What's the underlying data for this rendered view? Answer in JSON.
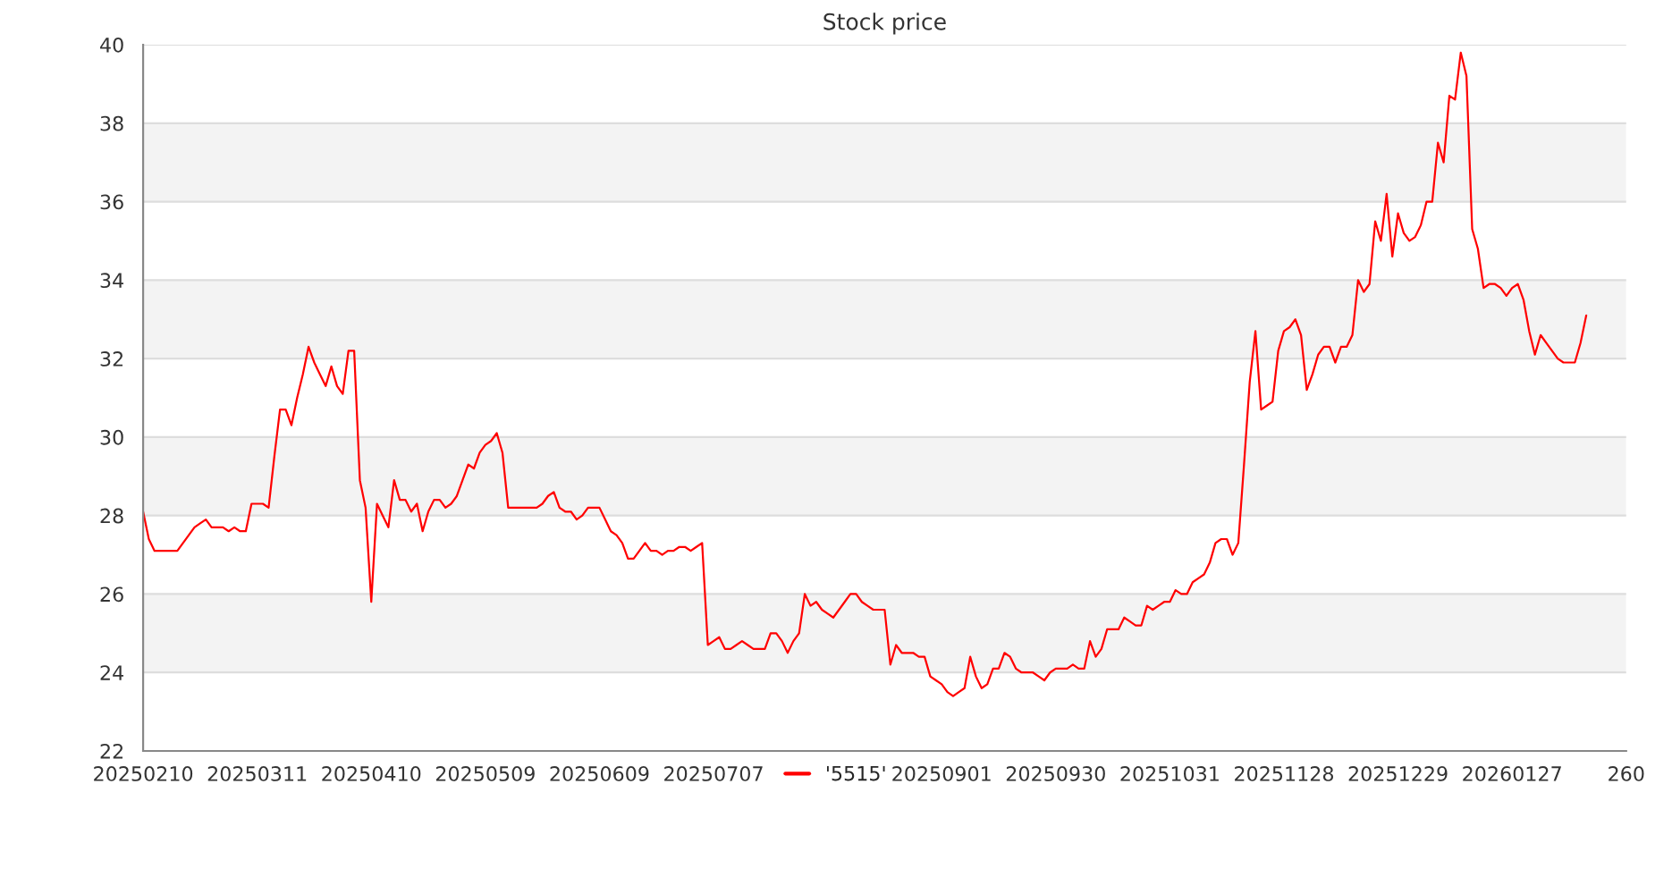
{
  "chart_data": {
    "type": "line",
    "title": "Stock price",
    "categories": [
      "20250210",
      null,
      null,
      null,
      null,
      null,
      null,
      null,
      null,
      null,
      null,
      null,
      null,
      null,
      null,
      null,
      null,
      null,
      null,
      null,
      "20250311",
      null,
      null,
      null,
      null,
      null,
      null,
      null,
      null,
      null,
      null,
      null,
      null,
      null,
      null,
      null,
      null,
      null,
      null,
      null,
      "20250410",
      null,
      null,
      null,
      null,
      null,
      null,
      null,
      null,
      null,
      null,
      null,
      null,
      null,
      null,
      null,
      null,
      null,
      null,
      null,
      "20250509",
      null,
      null,
      null,
      null,
      null,
      null,
      null,
      null,
      null,
      null,
      null,
      null,
      null,
      null,
      null,
      null,
      null,
      null,
      null,
      "20250609",
      null,
      null,
      null,
      null,
      null,
      null,
      null,
      null,
      null,
      null,
      null,
      null,
      null,
      null,
      null,
      null,
      null,
      null,
      null,
      "20250707",
      null,
      null,
      null,
      null,
      null,
      null,
      null,
      null,
      null,
      null,
      null,
      null,
      null,
      null,
      null,
      null,
      null,
      null,
      null,
      null,
      null,
      null,
      null,
      null,
      null,
      null,
      null,
      null,
      null,
      null,
      null,
      null,
      null,
      null,
      null,
      null,
      null,
      null,
      null,
      "20250901",
      null,
      null,
      null,
      null,
      null,
      null,
      null,
      null,
      null,
      null,
      null,
      null,
      null,
      null,
      null,
      null,
      null,
      null,
      null,
      "20250930",
      null,
      null,
      null,
      null,
      null,
      null,
      null,
      null,
      null,
      null,
      null,
      null,
      null,
      null,
      null,
      null,
      null,
      null,
      null,
      "20251031",
      null,
      null,
      null,
      null,
      null,
      null,
      null,
      null,
      null,
      null,
      null,
      null,
      null,
      null,
      null,
      null,
      null,
      null,
      null,
      "20251128",
      null,
      null,
      null,
      null,
      null,
      null,
      null,
      null,
      null,
      null,
      null,
      null,
      null,
      null,
      null,
      null,
      null,
      null,
      null,
      "20251229",
      null,
      null,
      null,
      null,
      null,
      null,
      null,
      null,
      null,
      null,
      null,
      null,
      null,
      null,
      null,
      null,
      null,
      null,
      null,
      "20260127",
      null,
      null,
      null,
      null,
      null,
      null,
      null,
      null,
      null,
      null,
      null,
      null,
      null,
      null,
      null,
      null,
      null,
      null,
      null,
      "260"
    ],
    "ylim": [
      22,
      40
    ],
    "yticks": [
      22,
      24,
      26,
      28,
      30,
      32,
      34,
      36,
      38,
      40
    ],
    "grid": "y",
    "legend": "bottom",
    "series": [
      {
        "name": "'5515'",
        "color": "#ff0000",
        "values": [
          28.1,
          27.4,
          27.1,
          27.1,
          27.1,
          27.1,
          27.1,
          27.3,
          27.5,
          27.7,
          27.8,
          27.9,
          27.7,
          27.7,
          27.7,
          27.6,
          27.7,
          27.6,
          27.6,
          28.3,
          28.3,
          28.3,
          28.2,
          29.5,
          30.7,
          30.7,
          30.3,
          31.0,
          31.6,
          32.3,
          31.9,
          31.6,
          31.3,
          31.8,
          31.3,
          31.1,
          32.2,
          32.2,
          28.9,
          28.2,
          25.8,
          28.3,
          28.0,
          27.7,
          28.9,
          28.4,
          28.4,
          28.1,
          28.3,
          27.6,
          28.1,
          28.4,
          28.4,
          28.2,
          28.3,
          28.5,
          28.9,
          29.3,
          29.2,
          29.6,
          29.8,
          29.9,
          30.1,
          29.6,
          28.2,
          28.2,
          28.2,
          28.2,
          28.2,
          28.2,
          28.3,
          28.5,
          28.6,
          28.2,
          28.1,
          28.1,
          27.9,
          28.0,
          28.2,
          28.2,
          28.2,
          27.9,
          27.6,
          27.5,
          27.3,
          26.9,
          26.9,
          27.1,
          27.3,
          27.1,
          27.1,
          27.0,
          27.1,
          27.1,
          27.2,
          27.2,
          27.1,
          27.2,
          27.3,
          24.7,
          24.8,
          24.9,
          24.6,
          24.6,
          24.7,
          24.8,
          24.7,
          24.6,
          24.6,
          24.6,
          25.0,
          25.0,
          24.8,
          24.5,
          24.8,
          25.0,
          26.0,
          25.7,
          25.8,
          25.6,
          25.5,
          25.4,
          25.6,
          25.8,
          26.0,
          26.0,
          25.8,
          25.7,
          25.6,
          25.6,
          25.6,
          24.2,
          24.7,
          24.5,
          24.5,
          24.5,
          24.4,
          24.4,
          23.9,
          23.8,
          23.7,
          23.5,
          23.4,
          23.5,
          23.6,
          24.4,
          23.9,
          23.6,
          23.7,
          24.1,
          24.1,
          24.5,
          24.4,
          24.1,
          24.0,
          24.0,
          24.0,
          23.9,
          23.8,
          24.0,
          24.1,
          24.1,
          24.1,
          24.2,
          24.1,
          24.1,
          24.8,
          24.4,
          24.6,
          25.1,
          25.1,
          25.1,
          25.4,
          25.3,
          25.2,
          25.2,
          25.7,
          25.6,
          25.7,
          25.8,
          25.8,
          26.1,
          26.0,
          26.0,
          26.3,
          26.4,
          26.5,
          26.8,
          27.3,
          27.4,
          27.4,
          27.0,
          27.3,
          29.3,
          31.4,
          32.7,
          30.7,
          30.8,
          30.9,
          32.2,
          32.7,
          32.8,
          33.0,
          32.6,
          31.2,
          31.6,
          32.1,
          32.3,
          32.3,
          31.9,
          32.3,
          32.3,
          32.6,
          34.0,
          33.7,
          33.9,
          35.5,
          35.0,
          36.2,
          34.6,
          35.7,
          35.2,
          35.0,
          35.1,
          35.4,
          36.0,
          36.0,
          37.5,
          37.0,
          38.7,
          38.6,
          39.8,
          39.2,
          35.3,
          34.8,
          33.8,
          33.9,
          33.9,
          33.8,
          33.6,
          33.8,
          33.9,
          33.5,
          32.7,
          32.1,
          32.6,
          32.4,
          32.2,
          32.0,
          31.9,
          31.9,
          31.9,
          32.4,
          33.1,
          null,
          null,
          null,
          null,
          null,
          null,
          null
        ]
      }
    ]
  }
}
